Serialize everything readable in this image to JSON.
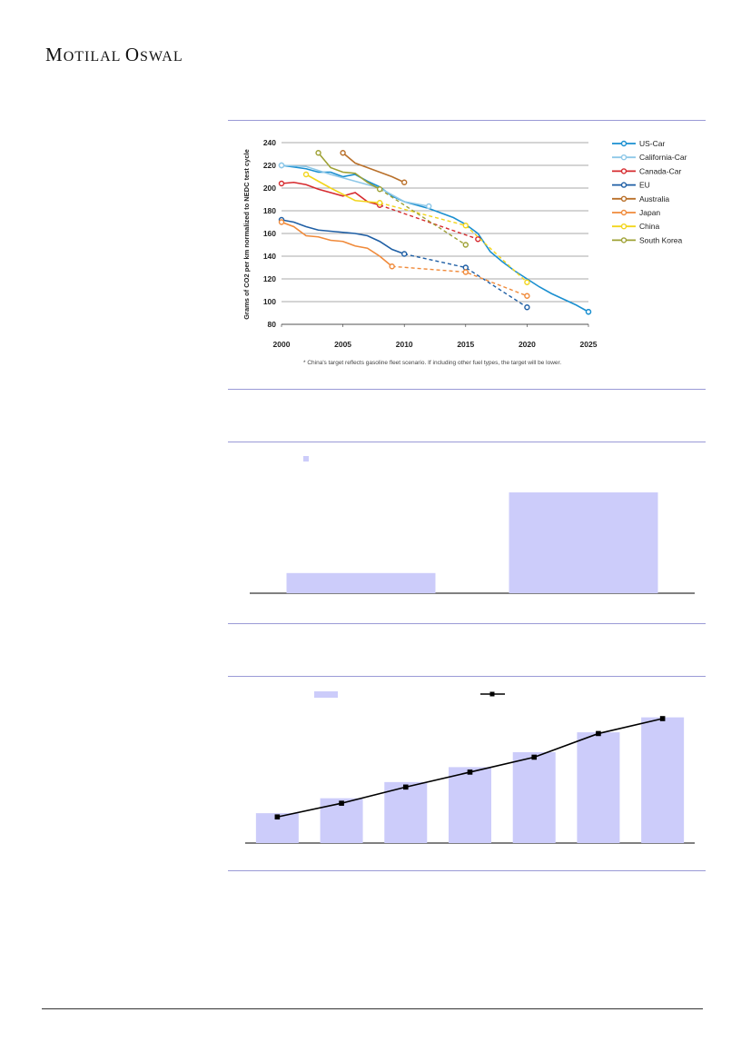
{
  "header": {
    "logo": "MOTILAL OSWAL"
  },
  "colors": {
    "rule": "#9a9ad6",
    "bar": "#ccccfa",
    "line": "#000000",
    "grid": "#555555"
  },
  "chart_data": [
    {
      "type": "line",
      "xlabel": "",
      "ylabel": "Grams of CO2 per km normalized to NEDC test cycle",
      "ylim": [
        80,
        240
      ],
      "xlim": [
        2000,
        2025
      ],
      "yticks": [
        "80",
        "100",
        "120",
        "140",
        "160",
        "180",
        "200",
        "220",
        "240"
      ],
      "xticks": [
        "2000",
        "2005",
        "2010",
        "2015",
        "2020",
        "2025"
      ],
      "grid": true,
      "legend_position": "right",
      "footnote": "* China's target reflects gasoline fleet scenario. If including other fuel types, the target will be lower.",
      "series": [
        {
          "name": "US-Car",
          "color": "#1a8fd0",
          "actual": [
            [
              2000,
              220
            ],
            [
              2002,
              217
            ],
            [
              2003,
              214
            ],
            [
              2004,
              214
            ],
            [
              2005,
              210
            ],
            [
              2006,
              212
            ],
            [
              2007,
              206
            ],
            [
              2008,
              201
            ],
            [
              2009,
              193
            ],
            [
              2010,
              188
            ],
            [
              2011,
              185
            ],
            [
              2012,
              182
            ],
            [
              2013,
              178
            ],
            [
              2014,
              174
            ],
            [
              2015,
              168
            ],
            [
              2016,
              160
            ],
            [
              2017,
              144
            ],
            [
              2018,
              135
            ],
            [
              2019,
              127
            ],
            [
              2020,
              120
            ],
            [
              2021,
              113
            ],
            [
              2022,
              107
            ],
            [
              2023,
              102
            ],
            [
              2024,
              97
            ],
            [
              2025,
              91
            ]
          ],
          "projected": [],
          "target_marker": [
            2025,
            91
          ]
        },
        {
          "name": "California-Car",
          "color": "#8ec8e8",
          "actual": [
            [
              2000,
              220
            ],
            [
              2002,
              219
            ],
            [
              2004,
              212
            ],
            [
              2006,
              206
            ],
            [
              2008,
              200
            ],
            [
              2010,
              188
            ],
            [
              2012,
              184
            ]
          ],
          "projected": [],
          "target_marker": null
        },
        {
          "name": "Canada-Car",
          "color": "#d62a2e",
          "actual": [
            [
              2000,
              204
            ],
            [
              2001,
              205
            ],
            [
              2002,
              203
            ],
            [
              2003,
              199
            ],
            [
              2004,
              196
            ],
            [
              2005,
              193
            ],
            [
              2006,
              196
            ],
            [
              2007,
              188
            ],
            [
              2008,
              185
            ]
          ],
          "projected": [
            [
              2008,
              185
            ],
            [
              2016,
              155
            ]
          ],
          "target_marker": [
            2016,
            155
          ]
        },
        {
          "name": "EU",
          "color": "#1f5fa5",
          "actual": [
            [
              2000,
              172
            ],
            [
              2001,
              170
            ],
            [
              2002,
              166
            ],
            [
              2003,
              163
            ],
            [
              2004,
              162
            ],
            [
              2005,
              161
            ],
            [
              2006,
              160
            ],
            [
              2007,
              158
            ],
            [
              2008,
              153
            ],
            [
              2009,
              146
            ],
            [
              2010,
              142
            ]
          ],
          "projected": [
            [
              2010,
              142
            ],
            [
              2015,
              130
            ],
            [
              2020,
              95
            ]
          ],
          "target_marker": [
            2020,
            95
          ]
        },
        {
          "name": "Australia",
          "color": "#b9702a",
          "actual": [
            [
              2005,
              231
            ],
            [
              2006,
              222
            ],
            [
              2007,
              218
            ],
            [
              2008,
              214
            ],
            [
              2009,
              210
            ],
            [
              2010,
              205
            ]
          ],
          "projected": [],
          "target_marker": null
        },
        {
          "name": "Japan",
          "color": "#f08a3a",
          "actual": [
            [
              2000,
              170
            ],
            [
              2001,
              166
            ],
            [
              2002,
              158
            ],
            [
              2003,
              157
            ],
            [
              2004,
              154
            ],
            [
              2005,
              153
            ],
            [
              2006,
              149
            ],
            [
              2007,
              147
            ],
            [
              2008,
              140
            ],
            [
              2009,
              131
            ]
          ],
          "projected": [
            [
              2009,
              131
            ],
            [
              2015,
              126
            ],
            [
              2020,
              105
            ]
          ],
          "target_marker": [
            2020,
            105
          ]
        },
        {
          "name": "China",
          "color": "#f2d51c",
          "actual": [
            [
              2002,
              212
            ],
            [
              2004,
              200
            ],
            [
              2006,
              189
            ],
            [
              2008,
              187
            ]
          ],
          "projected": [
            [
              2008,
              187
            ],
            [
              2015,
              167
            ],
            [
              2020,
              117
            ]
          ],
          "target_marker": [
            2020,
            117
          ]
        },
        {
          "name": "South Korea",
          "color": "#9ea134",
          "actual": [
            [
              2003,
              231
            ],
            [
              2004,
              218
            ],
            [
              2005,
              214
            ],
            [
              2006,
              213
            ],
            [
              2007,
              205
            ],
            [
              2008,
              199
            ]
          ],
          "projected": [
            [
              2008,
              199
            ],
            [
              2015,
              150
            ]
          ],
          "target_marker": [
            2015,
            150
          ]
        }
      ]
    },
    {
      "type": "bar",
      "title": "",
      "xlabel": "",
      "ylabel": "",
      "categories": [
        "",
        ""
      ],
      "values": [
        20,
        100
      ],
      "legend_position": "top-left",
      "grid": false
    },
    {
      "type": "bar",
      "title": "",
      "xlabel": "",
      "ylabel": "",
      "categories": [
        "",
        "",
        "",
        "",
        "",
        "",
        ""
      ],
      "series": [
        {
          "type": "bar",
          "values": [
            24,
            36,
            49,
            61,
            73,
            89,
            101
          ]
        },
        {
          "type": "line",
          "values": [
            21,
            32,
            45,
            57,
            69,
            88,
            100
          ]
        }
      ],
      "legend_position": "top",
      "grid": false
    }
  ]
}
